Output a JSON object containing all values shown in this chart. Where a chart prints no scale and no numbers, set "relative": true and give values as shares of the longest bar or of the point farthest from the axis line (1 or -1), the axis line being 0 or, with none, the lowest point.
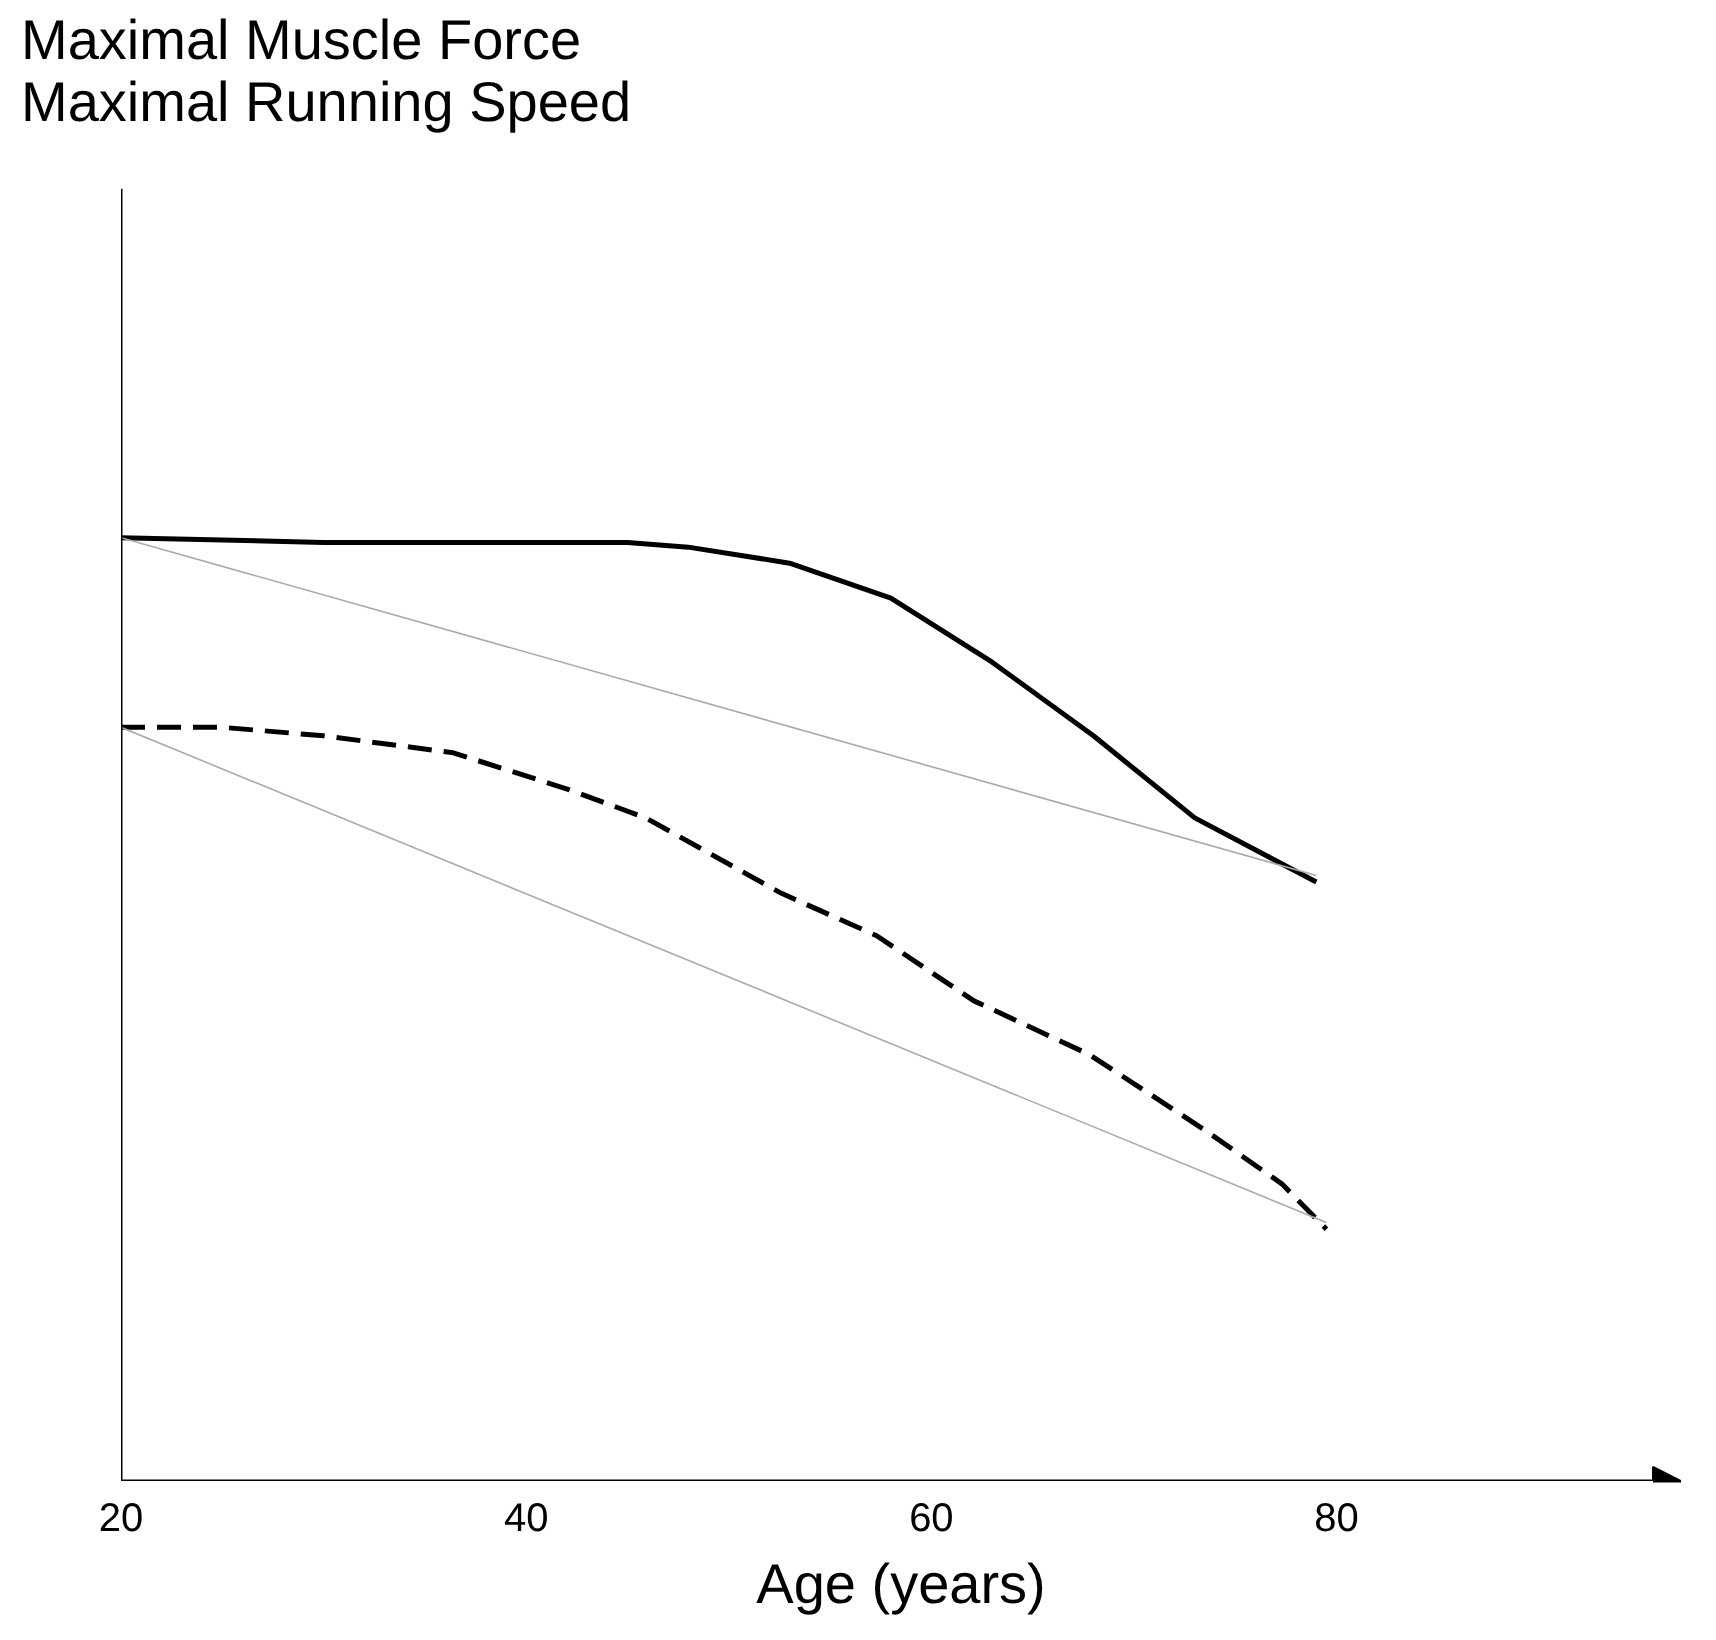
{
  "chart_data": {
    "type": "line",
    "relative": true,
    "xlabel": "Age (years)",
    "title": "Maximal Muscle Force\nMaximal Running Speed",
    "xlim": [
      20,
      97
    ],
    "xticks": [
      20,
      40,
      60,
      80
    ],
    "grid": false,
    "marker": "none",
    "series": [
      {
        "color": "#000000",
        "line_style": "solid",
        "x": [
          20,
          30,
          45,
          48,
          53,
          58,
          63,
          68,
          73,
          79
        ],
        "values": [
          1.0,
          0.995,
          0.995,
          0.99,
          0.973,
          0.936,
          0.868,
          0.79,
          0.703,
          0.635
        ]
      },
      {
        "color": "#000000",
        "line_style": "dashed",
        "x": [
          20,
          25,
          30,
          36.4,
          42.1,
          45.9,
          52.6,
          57.3,
          62.1,
          67.8,
          73.5,
          77.3,
          79.5
        ],
        "values": [
          0.799,
          0.799,
          0.79,
          0.772,
          0.733,
          0.703,
          0.623,
          0.578,
          0.509,
          0.452,
          0.372,
          0.315,
          0.267
        ]
      },
      {
        "color": "#aaaaaa",
        "line_style": "solid",
        "x": [
          20,
          79
        ],
        "values": [
          1.0,
          0.642
        ]
      },
      {
        "color": "#aaaaaa",
        "line_style": "solid",
        "x": [
          20,
          79.5
        ],
        "values": [
          0.799,
          0.274
        ]
      }
    ]
  }
}
